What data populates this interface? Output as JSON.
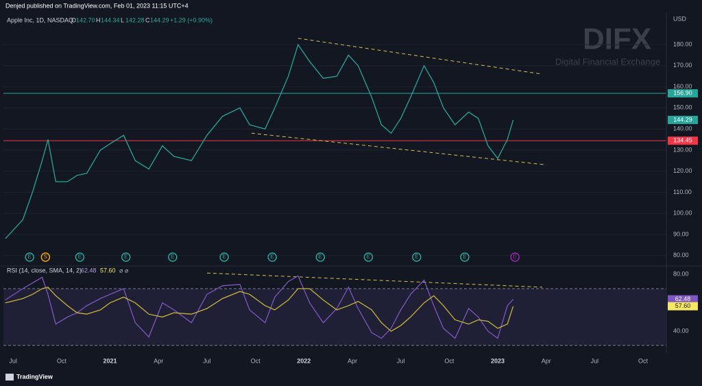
{
  "header": {
    "published": "Denjed published on TradingView.com, Feb 01, 2023 11:15 UTC+4"
  },
  "watermark": {
    "brand": "DIFX",
    "tagline": "Digital Financial Exchange"
  },
  "footer": {
    "brand": "TradingView"
  },
  "chart_data": [
    {
      "type": "line",
      "title": "Apple Inc, 1D, NASDAQ",
      "y_label": "USD",
      "ohlc": [
        {
          "key": "O",
          "value": "142.70"
        },
        {
          "key": "H",
          "value": "144.34"
        },
        {
          "key": "L",
          "value": "142.28"
        },
        {
          "key": "C",
          "value": "144.29"
        }
      ],
      "change": "+1.29 (+0.90%)",
      "x": [
        2020.46,
        2020.55,
        2020.6,
        2020.65,
        2020.68,
        2020.72,
        2020.78,
        2020.83,
        2020.88,
        2020.95,
        2021.0,
        2021.07,
        2021.13,
        2021.2,
        2021.27,
        2021.33,
        2021.42,
        2021.5,
        2021.58,
        2021.67,
        2021.72,
        2021.8,
        2021.85,
        2021.92,
        2021.97,
        2022.03,
        2022.1,
        2022.17,
        2022.23,
        2022.28,
        2022.35,
        2022.4,
        2022.45,
        2022.5,
        2022.55,
        2022.62,
        2022.67,
        2022.72,
        2022.78,
        2022.85,
        2022.9,
        2022.95,
        2023.0,
        2023.05,
        2023.08
      ],
      "series": [
        {
          "color": "#26a69a",
          "values": [
            88,
            97,
            110,
            125,
            135,
            115,
            115,
            118,
            119,
            130,
            133,
            137,
            125,
            121,
            132,
            127,
            125,
            137,
            146,
            150,
            142,
            140,
            150,
            165,
            180,
            172,
            164,
            165,
            175,
            170,
            155,
            142,
            138,
            145,
            155,
            170,
            162,
            150,
            142,
            148,
            145,
            132,
            126,
            135,
            144.29
          ]
        }
      ],
      "xlim": [
        2020.45,
        2023.87
      ],
      "ylim": [
        76,
        194
      ],
      "yticks": [
        {
          "value": 80,
          "label": "80.00"
        },
        {
          "value": 90,
          "label": "90.00"
        },
        {
          "value": 100,
          "label": "100.00"
        },
        {
          "value": 110,
          "label": "110.00"
        },
        {
          "value": 120,
          "label": "120.00"
        },
        {
          "value": 130,
          "label": "130.00"
        },
        {
          "value": 140,
          "label": "140.00"
        },
        {
          "value": 150,
          "label": "150.00"
        },
        {
          "value": 160,
          "label": "160.00"
        },
        {
          "value": 170,
          "label": "170.00"
        },
        {
          "value": 180,
          "label": "180.00"
        }
      ],
      "grid": true,
      "hlines": [
        {
          "value": 156.9,
          "label": "156.90",
          "color": "#26a69a"
        },
        {
          "value": 134.45,
          "label": "134.45",
          "color": "#f23645"
        }
      ],
      "badges": [
        {
          "value": 144.29,
          "label": "144.29",
          "color": "#26a69a"
        }
      ],
      "trendlines": [
        {
          "x": [
            2021.97,
            2023.23
          ],
          "y": [
            183,
            166
          ],
          "color": "#e0c050"
        },
        {
          "x": [
            2021.73,
            2023.25
          ],
          "y": [
            138,
            123
          ],
          "color": "#e0c050"
        }
      ],
      "events": [
        {
          "x": 2020.585,
          "label": "E",
          "color": "#26a69a"
        },
        {
          "x": 2020.667,
          "label": "S",
          "color": "#f7a600"
        },
        {
          "x": 2020.844,
          "label": "E",
          "color": "#26a69a"
        },
        {
          "x": 2021.082,
          "label": "E",
          "color": "#26a69a"
        },
        {
          "x": 2021.323,
          "label": "E",
          "color": "#26a69a"
        },
        {
          "x": 2021.589,
          "label": "E",
          "color": "#26a69a"
        },
        {
          "x": 2021.837,
          "label": "E",
          "color": "#26a69a"
        },
        {
          "x": 2022.085,
          "label": "E",
          "color": "#26a69a"
        },
        {
          "x": 2022.333,
          "label": "E",
          "color": "#26a69a"
        },
        {
          "x": 2022.582,
          "label": "E",
          "color": "#26a69a"
        },
        {
          "x": 2022.83,
          "label": "E",
          "color": "#26a69a"
        },
        {
          "x": 2023.089,
          "label": "E",
          "color": "#9c27b0"
        }
      ]
    },
    {
      "type": "line",
      "title": "RSI (14, close, SMA, 14, 2)",
      "legend_values": [
        "62.48",
        "57.60"
      ],
      "legend_suffix": "⌀ ⌀",
      "x": [
        2020.46,
        2020.55,
        2020.6,
        2020.65,
        2020.68,
        2020.72,
        2020.78,
        2020.83,
        2020.88,
        2020.95,
        2021.0,
        2021.07,
        2021.13,
        2021.2,
        2021.27,
        2021.33,
        2021.42,
        2021.5,
        2021.58,
        2021.67,
        2021.72,
        2021.8,
        2021.85,
        2021.92,
        2021.97,
        2022.03,
        2022.1,
        2022.17,
        2022.23,
        2022.28,
        2022.35,
        2022.4,
        2022.45,
        2022.5,
        2022.55,
        2022.62,
        2022.67,
        2022.72,
        2022.78,
        2022.85,
        2022.9,
        2022.95,
        2023.0,
        2023.05,
        2023.08
      ],
      "series": [
        {
          "color": "#7e57c2",
          "values": [
            62,
            70,
            74,
            78,
            66,
            45,
            50,
            53,
            58,
            63,
            66,
            70,
            46,
            36,
            60,
            55,
            46,
            66,
            72,
            73,
            55,
            46,
            64,
            75,
            79,
            60,
            46,
            56,
            71,
            56,
            39,
            35,
            42,
            55,
            66,
            76,
            58,
            42,
            35,
            56,
            50,
            40,
            35,
            58,
            62.48
          ]
        },
        {
          "color": "#c9b43a",
          "values": [
            60,
            63,
            66,
            70,
            71,
            65,
            58,
            53,
            52,
            55,
            60,
            64,
            60,
            52,
            50,
            53,
            52,
            56,
            63,
            68,
            66,
            58,
            55,
            62,
            70,
            70,
            62,
            55,
            58,
            61,
            55,
            46,
            40,
            44,
            50,
            60,
            65,
            58,
            48,
            45,
            48,
            47,
            42,
            45,
            57.6
          ]
        }
      ],
      "xlim": [
        2020.45,
        2023.87
      ],
      "ylim": [
        27,
        84
      ],
      "yticks": [
        {
          "value": 40,
          "label": "40.00"
        },
        {
          "value": 80,
          "label": "80.00"
        }
      ],
      "band": [
        30,
        70
      ],
      "badges": [
        {
          "value": 62.48,
          "label": "62.48",
          "color": "#7e57c2"
        },
        {
          "value": 57.6,
          "label": "57.60",
          "color": "#f5e663",
          "text_color": "#131722"
        }
      ],
      "trendlines": [
        {
          "x": [
            2021.5,
            2023.23
          ],
          "y": [
            81,
            71
          ],
          "color": "#e0c050"
        }
      ],
      "xticks": [
        {
          "value": 2020.5,
          "label": "Jul"
        },
        {
          "value": 2020.75,
          "label": "Oct"
        },
        {
          "value": 2021,
          "label": "2021"
        },
        {
          "value": 2021.25,
          "label": "Apr"
        },
        {
          "value": 2021.5,
          "label": "Jul"
        },
        {
          "value": 2021.75,
          "label": "Oct"
        },
        {
          "value": 2022,
          "label": "2022"
        },
        {
          "value": 2022.25,
          "label": "Apr"
        },
        {
          "value": 2022.5,
          "label": "Jul"
        },
        {
          "value": 2022.75,
          "label": "Oct"
        },
        {
          "value": 2023,
          "label": "2023"
        },
        {
          "value": 2023.25,
          "label": "Apr"
        },
        {
          "value": 2023.5,
          "label": "Jul"
        },
        {
          "value": 2023.75,
          "label": "Oct"
        }
      ]
    }
  ]
}
